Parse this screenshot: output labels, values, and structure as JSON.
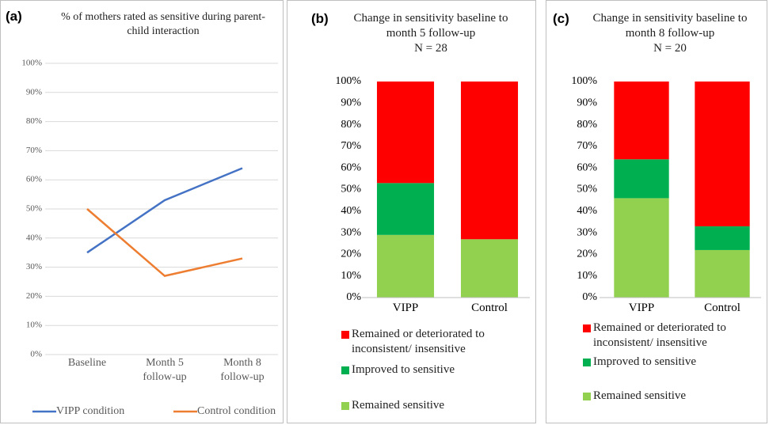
{
  "chart_data": [
    {
      "type": "line",
      "panel_label": "(a)",
      "title": "% of mothers rated as sensitive during parent-child interaction",
      "categories": [
        "Baseline",
        "Month 5 follow-up",
        "Month 8 follow-up"
      ],
      "series": [
        {
          "name": "VIPP condition",
          "color": "#4472c4",
          "values": [
            35,
            53,
            64
          ]
        },
        {
          "name": "Control condition",
          "color": "#ed7d31",
          "values": [
            50,
            27,
            33
          ]
        }
      ],
      "ylim": [
        0,
        100
      ],
      "yticks": [
        {
          "value": 0,
          "label": "0%"
        },
        {
          "value": 10,
          "label": "10%"
        },
        {
          "value": 20,
          "label": "20%"
        },
        {
          "value": 30,
          "label": "30%"
        },
        {
          "value": 40,
          "label": "40%"
        },
        {
          "value": 50,
          "label": "50%"
        },
        {
          "value": 60,
          "label": "60%"
        },
        {
          "value": 70,
          "label": "70%"
        },
        {
          "value": 80,
          "label": "80%"
        },
        {
          "value": 90,
          "label": "90%"
        },
        {
          "value": 100,
          "label": "100%"
        }
      ],
      "grid": true,
      "legend": "bottom"
    },
    {
      "type": "stacked_bar",
      "panel_label": "(b)",
      "title": "Change in sensitivity baseline to month 5 follow-up",
      "subtitle": "N = 28",
      "categories": [
        "VIPP",
        "Control"
      ],
      "series": [
        {
          "name": "Remained sensitive",
          "color": "#92d050",
          "values": [
            29,
            27
          ]
        },
        {
          "name": "Improved to sensitive",
          "color": "#00b050",
          "values": [
            24,
            0
          ]
        },
        {
          "name": "Remained or deteriorated to inconsistent/ insensitive",
          "color": "#ff0000",
          "values": [
            47,
            73
          ]
        }
      ],
      "ylim": [
        0,
        100
      ],
      "yticks": [
        {
          "value": 0,
          "label": "0%"
        },
        {
          "value": 10,
          "label": "10%"
        },
        {
          "value": 20,
          "label": "20%"
        },
        {
          "value": 30,
          "label": "30%"
        },
        {
          "value": 40,
          "label": "40%"
        },
        {
          "value": 50,
          "label": "50%"
        },
        {
          "value": 60,
          "label": "60%"
        },
        {
          "value": 70,
          "label": "70%"
        },
        {
          "value": 80,
          "label": "80%"
        },
        {
          "value": 90,
          "label": "90%"
        },
        {
          "value": 100,
          "label": "100%"
        }
      ],
      "grid": false,
      "legend": "bottom"
    },
    {
      "type": "stacked_bar",
      "panel_label": "(c)",
      "title": "Change in sensitivity baseline to month 8 follow-up",
      "subtitle": "N = 20",
      "categories": [
        "VIPP",
        "Control"
      ],
      "series": [
        {
          "name": "Remained sensitive",
          "color": "#92d050",
          "values": [
            46,
            22
          ]
        },
        {
          "name": "Improved to sensitive",
          "color": "#00b050",
          "values": [
            18,
            11
          ]
        },
        {
          "name": "Remained or deteriorated to inconsistent/ insensitive",
          "color": "#ff0000",
          "values": [
            36,
            67
          ]
        }
      ],
      "ylim": [
        0,
        100
      ],
      "yticks": [
        {
          "value": 0,
          "label": "0%"
        },
        {
          "value": 10,
          "label": "10%"
        },
        {
          "value": 20,
          "label": "20%"
        },
        {
          "value": 30,
          "label": "30%"
        },
        {
          "value": 40,
          "label": "40%"
        },
        {
          "value": 50,
          "label": "50%"
        },
        {
          "value": 60,
          "label": "60%"
        },
        {
          "value": 70,
          "label": "70%"
        },
        {
          "value": 80,
          "label": "80%"
        },
        {
          "value": 90,
          "label": "90%"
        },
        {
          "value": 100,
          "label": "100%"
        }
      ],
      "grid": false,
      "legend": "bottom"
    }
  ]
}
